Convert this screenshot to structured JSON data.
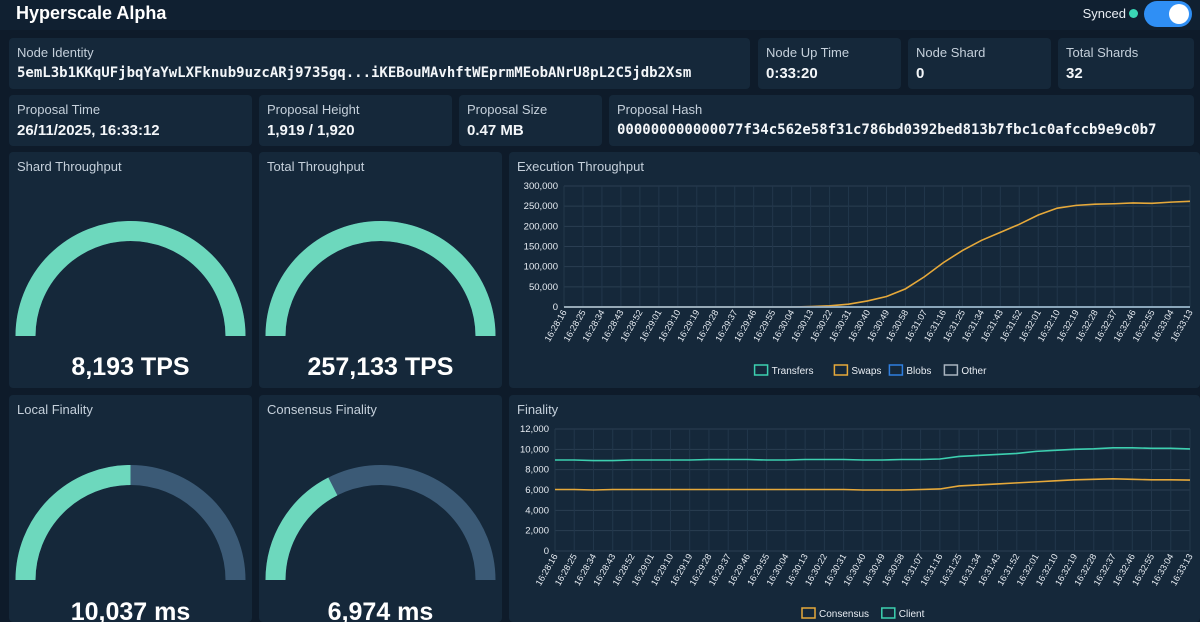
{
  "app": {
    "title": "Hyperscale Alpha",
    "sync_label": "Synced"
  },
  "info": {
    "node_identity": {
      "label": "Node Identity",
      "value": "5emL3b1KKqUFjbqYaYwLXFknub9uzcARj9735gq...iKEBouMAvhftWEprmMEobANrU8pL2C5jdb2Xsm"
    },
    "node_uptime": {
      "label": "Node Up Time",
      "value": "0:33:20"
    },
    "node_shard": {
      "label": "Node Shard",
      "value": "0"
    },
    "total_shards": {
      "label": "Total Shards",
      "value": "32"
    },
    "proposal_time": {
      "label": "Proposal Time",
      "value": "26/11/2025, 16:33:12"
    },
    "proposal_height": {
      "label": "Proposal Height",
      "value": "1,919 / 1,920"
    },
    "proposal_size": {
      "label": "Proposal Size",
      "value": "0.47 MB"
    },
    "proposal_hash": {
      "label": "Proposal Hash",
      "value": "000000000000077f34c562e58f31c786bd0392bed813b7fbc1c0afccb9e9c0b7"
    }
  },
  "gauges": {
    "shard_throughput": {
      "label": "Shard Throughput",
      "value": "8,193 TPS",
      "fill": 1.0
    },
    "total_throughput": {
      "label": "Total Throughput",
      "value": "257,133 TPS",
      "fill": 1.0
    },
    "local_finality": {
      "label": "Local Finality",
      "value": "10,037 ms",
      "fill": 0.5
    },
    "consensus_finality": {
      "label": "Consensus Finality",
      "value": "6,974 ms",
      "fill": 0.35
    }
  },
  "colors": {
    "teal": "#3dd0b0",
    "orange": "#e6a93a",
    "blue": "#2f7fe0",
    "gray": "#a9b4c0",
    "gauge_fill": "#6dd8bd",
    "gauge_track": "#3b5a76"
  },
  "chart_data": [
    {
      "type": "line",
      "title": "Execution Throughput",
      "x": [
        "16:28:16",
        "16:28:25",
        "16:28:34",
        "16:28:43",
        "16:28:52",
        "16:29:01",
        "16:29:10",
        "16:29:19",
        "16:29:28",
        "16:29:37",
        "16:29:46",
        "16:29:55",
        "16:30:04",
        "16:30:13",
        "16:30:22",
        "16:30:31",
        "16:30:40",
        "16:30:49",
        "16:30:58",
        "16:31:07",
        "16:31:16",
        "16:31:25",
        "16:31:34",
        "16:31:43",
        "16:31:52",
        "16:32:01",
        "16:32:10",
        "16:32:19",
        "16:32:28",
        "16:32:37",
        "16:32:46",
        "16:32:55",
        "16:33:04",
        "16:33:13"
      ],
      "ylim": [
        0,
        300000
      ],
      "yticks": [
        "0",
        "50,000",
        "100,000",
        "150,000",
        "200,000",
        "250,000",
        "300,000"
      ],
      "series": [
        {
          "name": "Transfers",
          "color": "#3dd0b0",
          "values": [
            0,
            0,
            0,
            0,
            0,
            0,
            0,
            0,
            0,
            0,
            0,
            0,
            0,
            0,
            0,
            0,
            0,
            0,
            0,
            0,
            0,
            0,
            0,
            0,
            0,
            0,
            0,
            0,
            0,
            0,
            0,
            0,
            0,
            0
          ]
        },
        {
          "name": "Swaps",
          "color": "#e6a93a",
          "values": [
            0,
            0,
            0,
            0,
            0,
            0,
            0,
            0,
            0,
            0,
            0,
            0,
            0,
            1000,
            3000,
            7000,
            15000,
            26000,
            45000,
            75000,
            110000,
            140000,
            165000,
            185000,
            205000,
            228000,
            245000,
            252000,
            255000,
            256000,
            258000,
            257000,
            260000,
            262000
          ]
        },
        {
          "name": "Blobs",
          "color": "#2f7fe0",
          "values": [
            0,
            0,
            0,
            0,
            0,
            0,
            0,
            0,
            0,
            0,
            0,
            0,
            0,
            0,
            0,
            0,
            0,
            0,
            0,
            0,
            0,
            0,
            0,
            0,
            0,
            0,
            0,
            0,
            0,
            0,
            0,
            0,
            0,
            0
          ]
        },
        {
          "name": "Other",
          "color": "#a9b4c0",
          "values": [
            0,
            0,
            0,
            0,
            0,
            0,
            0,
            0,
            0,
            0,
            0,
            0,
            0,
            0,
            0,
            0,
            0,
            0,
            0,
            0,
            0,
            0,
            0,
            0,
            0,
            0,
            0,
            0,
            0,
            0,
            0,
            0,
            0,
            0
          ]
        }
      ]
    },
    {
      "type": "line",
      "title": "Finality",
      "x": [
        "16:28:16",
        "16:28:25",
        "16:28:34",
        "16:28:43",
        "16:28:52",
        "16:29:01",
        "16:29:10",
        "16:29:19",
        "16:29:28",
        "16:29:37",
        "16:29:46",
        "16:29:55",
        "16:30:04",
        "16:30:13",
        "16:30:22",
        "16:30:31",
        "16:30:40",
        "16:30:49",
        "16:30:58",
        "16:31:07",
        "16:31:16",
        "16:31:25",
        "16:31:34",
        "16:31:43",
        "16:31:52",
        "16:32:01",
        "16:32:10",
        "16:32:19",
        "16:32:28",
        "16:32:37",
        "16:32:46",
        "16:32:55",
        "16:33:04",
        "16:33:13"
      ],
      "ylim": [
        0,
        12000
      ],
      "yticks": [
        "0",
        "2,000",
        "4,000",
        "6,000",
        "8,000",
        "10,000",
        "12,000"
      ],
      "series": [
        {
          "name": "Consensus",
          "color": "#e6a93a",
          "values": [
            6050,
            6050,
            6000,
            6050,
            6050,
            6050,
            6050,
            6050,
            6050,
            6050,
            6050,
            6050,
            6050,
            6050,
            6050,
            6050,
            6000,
            6000,
            6000,
            6050,
            6100,
            6400,
            6500,
            6600,
            6700,
            6800,
            6900,
            7000,
            7050,
            7100,
            7050,
            7000,
            7000,
            6974
          ]
        },
        {
          "name": "Client",
          "color": "#3dd0b0",
          "values": [
            8950,
            8950,
            8900,
            8900,
            8950,
            8950,
            8950,
            8950,
            9000,
            9000,
            9000,
            8950,
            8950,
            9000,
            9000,
            9000,
            8950,
            8950,
            9000,
            9000,
            9050,
            9300,
            9400,
            9500,
            9600,
            9800,
            9900,
            10000,
            10050,
            10150,
            10150,
            10100,
            10100,
            10037
          ]
        }
      ]
    }
  ]
}
